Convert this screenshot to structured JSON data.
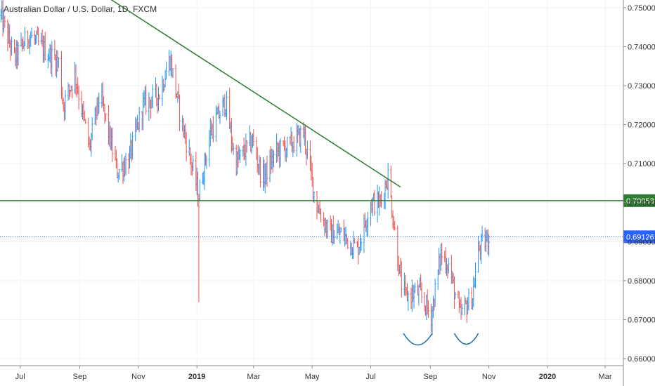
{
  "chart_data": {
    "type": "candlestick",
    "title": "Australian Dollar / U.S. Dollar, 1D, FXCM",
    "x_ticks": [
      {
        "label": "Jul",
        "date": "2018-07-01",
        "bold": false
      },
      {
        "label": "Sep",
        "date": "2018-09-01",
        "bold": false
      },
      {
        "label": "Nov",
        "date": "2018-11-01",
        "bold": false
      },
      {
        "label": "2019",
        "date": "2019-01-01",
        "bold": true
      },
      {
        "label": "Mar",
        "date": "2019-03-01",
        "bold": false
      },
      {
        "label": "May",
        "date": "2019-05-01",
        "bold": false
      },
      {
        "label": "Jul",
        "date": "2019-07-01",
        "bold": false
      },
      {
        "label": "Sep",
        "date": "2019-09-01",
        "bold": false
      },
      {
        "label": "Nov",
        "date": "2019-11-01",
        "bold": false
      },
      {
        "label": "2020",
        "date": "2020-01-01",
        "bold": true
      },
      {
        "label": "Mar",
        "date": "2020-03-01",
        "bold": false
      }
    ],
    "y_ticks": [
      "0.66000",
      "0.67000",
      "0.68000",
      "0.69000",
      "0.70000",
      "0.71000",
      "0.72000",
      "0.73000",
      "0.74000",
      "0.75000"
    ],
    "y_range": [
      0.66,
      0.755
    ],
    "x_range": [
      "2018-06-10",
      "2020-03-20"
    ],
    "trendline": {
      "start": {
        "date": "2018-08-15",
        "price": 0.76
      },
      "end": {
        "date": "2019-08-01",
        "price": 0.704
      }
    },
    "support_line": {
      "price": 0.70053,
      "label": "0.70053",
      "color": "#2e7d32"
    },
    "current_price": {
      "price": 0.69126,
      "label": "0.69126",
      "color": "#2962ff"
    },
    "arcs": [
      {
        "from": "2019-08-04",
        "to": "2019-09-03",
        "bottom": 0.6635
      },
      {
        "from": "2019-09-26",
        "to": "2019-10-21",
        "bottom": 0.6637
      }
    ],
    "spike": {
      "date": "2019-01-03",
      "low": 0.6745
    },
    "path": [
      [
        "2018-06-11",
        0.748
      ],
      [
        "2018-06-25",
        0.737
      ],
      [
        "2018-07-10",
        0.743
      ],
      [
        "2018-07-27",
        0.739
      ],
      [
        "2018-08-10",
        0.736
      ],
      [
        "2018-08-15",
        0.725
      ],
      [
        "2018-08-27",
        0.733
      ],
      [
        "2018-09-11",
        0.714
      ],
      [
        "2018-09-22",
        0.728
      ],
      [
        "2018-10-10",
        0.708
      ],
      [
        "2018-10-22",
        0.711
      ],
      [
        "2018-11-06",
        0.725
      ],
      [
        "2018-11-23",
        0.728
      ],
      [
        "2018-12-04",
        0.737
      ],
      [
        "2018-12-15",
        0.722
      ],
      [
        "2018-12-31",
        0.705
      ],
      [
        "2019-01-03",
        0.702
      ],
      [
        "2019-01-15",
        0.718
      ],
      [
        "2019-01-31",
        0.726
      ],
      [
        "2019-02-10",
        0.71
      ],
      [
        "2019-02-28",
        0.716
      ],
      [
        "2019-03-10",
        0.706
      ],
      [
        "2019-03-25",
        0.713
      ],
      [
        "2019-04-10",
        0.715
      ],
      [
        "2019-04-22",
        0.718
      ],
      [
        "2019-05-05",
        0.7
      ],
      [
        "2019-05-19",
        0.692
      ],
      [
        "2019-06-01",
        0.692
      ],
      [
        "2019-06-17",
        0.688
      ],
      [
        "2019-07-01",
        0.7
      ],
      [
        "2019-07-11",
        0.7
      ],
      [
        "2019-07-19",
        0.707
      ],
      [
        "2019-08-01",
        0.68
      ],
      [
        "2019-08-06",
        0.676
      ],
      [
        "2019-08-20",
        0.677
      ],
      [
        "2019-09-02",
        0.671
      ],
      [
        "2019-09-12",
        0.687
      ],
      [
        "2019-09-20",
        0.684
      ],
      [
        "2019-10-02",
        0.671
      ],
      [
        "2019-10-15",
        0.676
      ],
      [
        "2019-10-21",
        0.688
      ],
      [
        "2019-11-01",
        0.691
      ]
    ]
  }
}
